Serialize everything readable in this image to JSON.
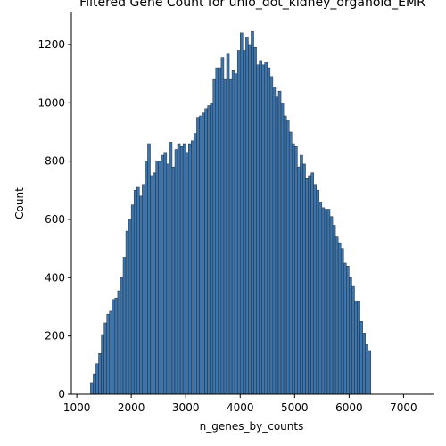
{
  "chart_data": {
    "type": "bar",
    "title": "Filtered Gene Count for uhio_dot_kidney_organoid_EMR",
    "xlabel": "n_genes_by_counts",
    "ylabel": "Count",
    "xlim": [
      900,
      7550
    ],
    "ylim": [
      0,
      1310
    ],
    "xticks": [
      "1000",
      "2000",
      "3000",
      "4000",
      "5000",
      "6000",
      "7000"
    ],
    "yticks": [
      "0",
      "200",
      "400",
      "600",
      "800",
      "1000",
      "1200"
    ],
    "bin_start": 1250,
    "bin_width": 50,
    "values": [
      40,
      70,
      105,
      140,
      205,
      245,
      275,
      285,
      325,
      330,
      355,
      400,
      470,
      560,
      600,
      650,
      700,
      710,
      680,
      720,
      800,
      860,
      750,
      760,
      800,
      800,
      820,
      830,
      790,
      865,
      780,
      840,
      860,
      850,
      860,
      830,
      860,
      870,
      895,
      950,
      955,
      965,
      980,
      990,
      1000,
      1080,
      1120,
      1120,
      1155,
      1080,
      1170,
      1080,
      1110,
      1100,
      1180,
      1240,
      1180,
      1225,
      1200,
      1245,
      1190,
      1130,
      1145,
      1130,
      1140,
      1120,
      1090,
      1055,
      1020,
      1040,
      1000,
      955,
      940,
      900,
      860,
      850,
      780,
      820,
      790,
      740,
      750,
      760,
      720,
      700,
      660,
      640,
      635,
      635,
      610,
      580,
      540,
      520,
      500,
      450,
      440,
      400,
      370,
      320,
      320,
      250,
      210,
      170,
      150
    ],
    "bar_color": "#3b75af",
    "edge_color": "#2b2b2b",
    "grid": false
  }
}
